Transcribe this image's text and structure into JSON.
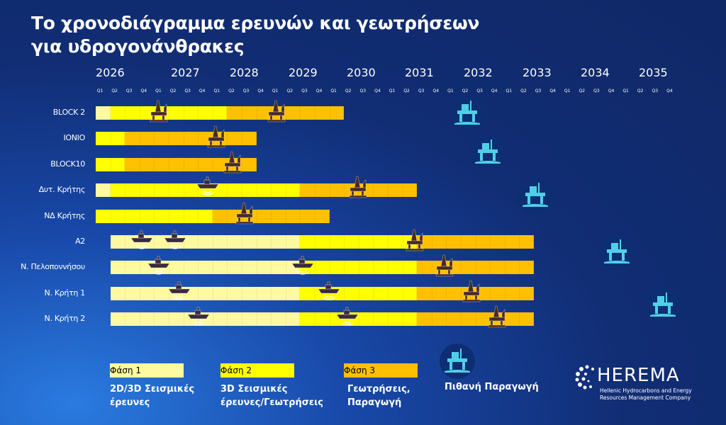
{
  "title_line1": "Το χρονοδιάγραμμα ερευνών και γεωτρήσεων",
  "title_line2": "για υδρογονάνθρακες",
  "years": [
    "2026",
    "2027",
    "2028",
    "2029",
    "2030",
    "2031",
    "2032",
    "2033",
    "2034",
    "2035"
  ],
  "quarters": [
    "Q1",
    "Q2",
    "Q3",
    "Q4"
  ],
  "colors": {
    "phase1": "#fffaa0",
    "phase2": "#ffff00",
    "phase3": "#ffc000",
    "production": "#4fd0e8"
  },
  "rows": [
    {
      "label": "BLOCK 2",
      "segments": [
        [
          1,
          "2026-Q1",
          "2026-Q1"
        ],
        [
          2,
          "2026-Q2",
          "2028-Q1"
        ],
        [
          3,
          "2028-Q2",
          "2030-Q1"
        ]
      ]
    },
    {
      "label": "IONIO",
      "segments": [
        [
          2,
          "2026-Q1",
          "2026-Q2"
        ],
        [
          3,
          "2026-Q3",
          "2028-Q3"
        ]
      ]
    },
    {
      "label": "BLOCK10",
      "segments": [
        [
          2,
          "2026-Q1",
          "2026-Q2"
        ],
        [
          3,
          "2026-Q3",
          "2028-Q3"
        ]
      ]
    },
    {
      "label": "Δυτ. Κρήτης",
      "segments": [
        [
          1,
          "2026-Q1",
          "2026-Q1"
        ],
        [
          2,
          "2026-Q2",
          "2029-Q2"
        ],
        [
          3,
          "2029-Q3",
          "2031-Q2"
        ]
      ]
    },
    {
      "label": "ΝΔ Κρήτης",
      "segments": [
        [
          2,
          "2026-Q1",
          "2027-Q4"
        ],
        [
          3,
          "2028-Q1",
          "2029-Q4"
        ]
      ]
    },
    {
      "label": "A2",
      "segments": [
        [
          1,
          "2026-Q2",
          "2029-Q2"
        ],
        [
          2,
          "2029-Q3",
          "2031-Q2"
        ],
        [
          3,
          "2031-Q3",
          "2033-Q2"
        ]
      ]
    },
    {
      "label": "Ν. Πελοποννήσου",
      "segments": [
        [
          1,
          "2026-Q2",
          "2029-Q2"
        ],
        [
          2,
          "2029-Q3",
          "2031-Q2"
        ],
        [
          3,
          "2031-Q3",
          "2033-Q2"
        ]
      ]
    },
    {
      "label": "Ν. Κρήτη 1",
      "segments": [
        [
          1,
          "2026-Q2",
          "2029-Q2"
        ],
        [
          2,
          "2029-Q3",
          "2031-Q2"
        ],
        [
          3,
          "2031-Q3",
          "2033-Q2"
        ]
      ]
    },
    {
      "label": "Ν. Κρήτη 2",
      "segments": [
        [
          1,
          "2026-Q2",
          "2029-Q2"
        ],
        [
          2,
          "2029-Q3",
          "2031-Q2"
        ],
        [
          3,
          "2031-Q3",
          "2033-Q2"
        ]
      ]
    }
  ],
  "legend": [
    {
      "label": "Φάση 1",
      "desc1": "2D/3D Σεισμικές",
      "desc2": "έρευνες"
    },
    {
      "label": "Φάση 2",
      "desc1": "3D Σεισμικές",
      "desc2": "έρευνες/Γεωτρήσεις"
    },
    {
      "label": "Φάση 3",
      "desc1": "Γεωτρήσεις,",
      "desc2": "Παραγωγή"
    }
  ],
  "production_label": "Πιθανή Παραγωγή",
  "icons": {
    "drilling": "drilling-rig-icon",
    "survey": "seismic-ship-icon",
    "production": "production-platform-icon"
  },
  "logo": {
    "name": "HEREMA",
    "sub1": "Hellenic Hydrocarbons and Energy",
    "sub2": "Resources Management Company"
  }
}
